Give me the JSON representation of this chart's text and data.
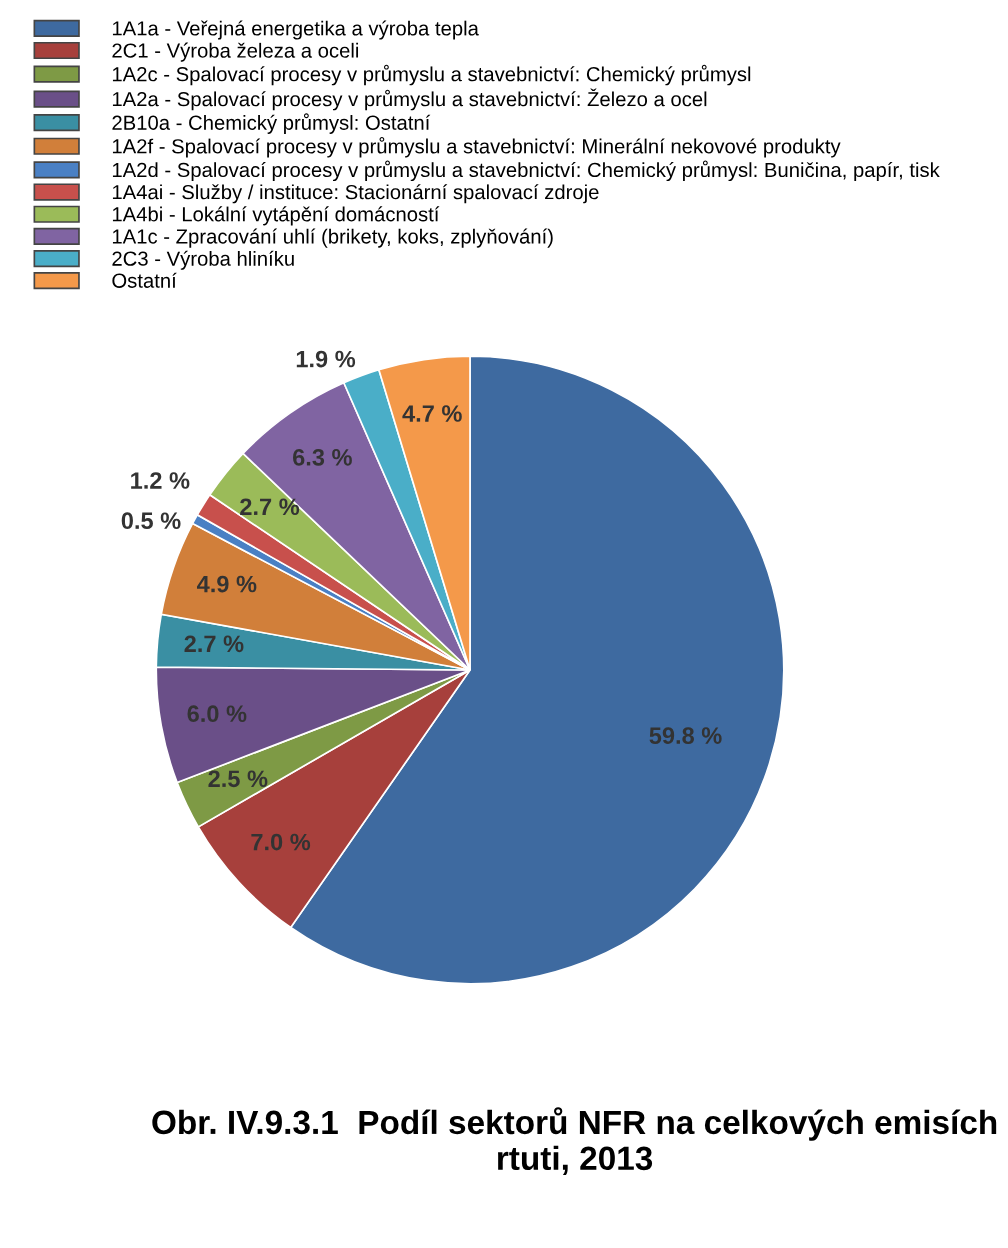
{
  "chart_data": {
    "type": "pie",
    "title": "Obr. IV.9.3.1  Podíl sektorů NFR na celkových emisích rtuti, 2013",
    "categories": [
      "1A1a - Veřejná energetika a výroba tepla",
      "2C1 - Výroba železa a oceli",
      "1A2c - Spalovací procesy v průmyslu a stavebnictví: Chemický průmysl",
      "1A2a - Spalovací procesy v průmyslu a stavebnictví: Železo a ocel",
      "2B10a - Chemický průmysl: Ostatní",
      "1A2f - Spalovací procesy v průmyslu a stavebnictví: Minerální nekovové produkty",
      "1A2d - Spalovací procesy v průmyslu a stavebnictví: Chemický průmysl: Buničina, papír, tisk",
      "1A4ai - Služby / instituce: Stacionární spalovací zdroje",
      "1A4bi - Lokální vytápění domácností",
      "1A1c - Zpracování uhlí (brikety, koks, zplyňování)",
      "2C3 - Výroba hliníku",
      "Ostatní"
    ],
    "values": [
      59.8,
      7.0,
      2.5,
      6.0,
      2.7,
      4.9,
      0.5,
      1.2,
      2.7,
      6.3,
      1.9,
      4.7
    ],
    "value_labels": [
      "59.8 %",
      "7.0 %",
      "2.5 %",
      "6.0 %",
      "2.7 %",
      "4.9 %",
      "0.5 %",
      "1.2 %",
      "2.7 %",
      "6.3 %",
      "1.9 %",
      "4.7 %"
    ],
    "colors": [
      "#3e6aa0",
      "#a7403c",
      "#7e9a45",
      "#6a4f88",
      "#3a8fa3",
      "#d17f3a",
      "#4a80c4",
      "#c8504c",
      "#9bbb59",
      "#8064a2",
      "#4aaec8",
      "#f4994a"
    ],
    "legend": "top"
  }
}
